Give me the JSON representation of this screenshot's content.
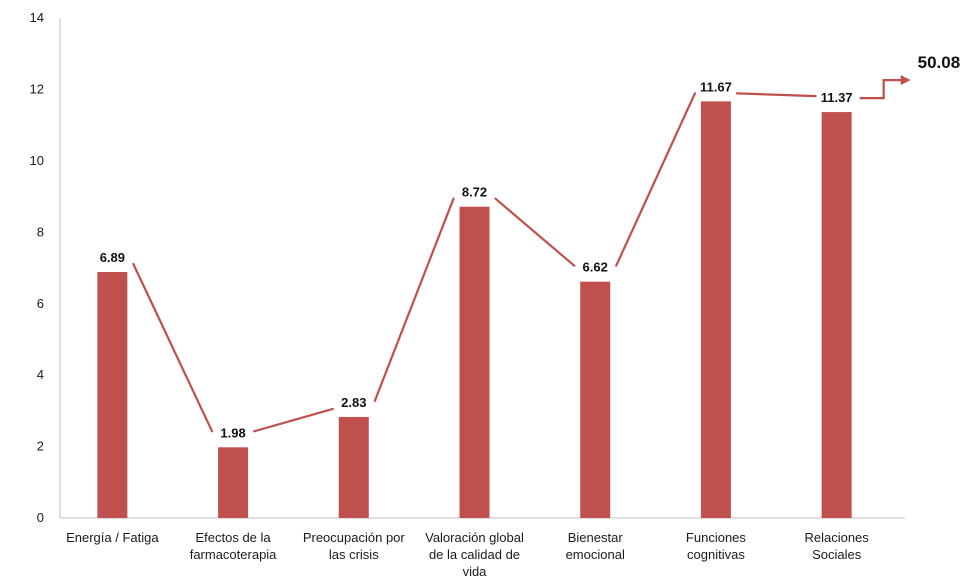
{
  "chart_data": {
    "type": "bar",
    "categories": [
      [
        "Energía / Fatiga"
      ],
      [
        "Efectos de la",
        "farmacoterapia"
      ],
      [
        "Preocupación por",
        "las crisis"
      ],
      [
        "Valoración global",
        "de la calidad de",
        "vida"
      ],
      [
        "Bienestar",
        "emocional"
      ],
      [
        "Funciones",
        "cognitivas"
      ],
      [
        "Relaciones",
        "Sociales"
      ]
    ],
    "values": [
      6.89,
      1.98,
      2.83,
      8.72,
      6.62,
      11.67,
      11.37
    ],
    "data_labels": [
      "6.89",
      "1.98",
      "2.83",
      "8.72",
      "6.62",
      "11.67",
      "11.37"
    ],
    "ylim": [
      0,
      14
    ],
    "yticks": [
      0,
      2,
      4,
      6,
      8,
      10,
      12,
      14
    ],
    "title": "",
    "xlabel": "",
    "ylabel": "",
    "grid": false,
    "legend": "none",
    "total_annotation": "50.08",
    "colors": {
      "bar": "#c0504d",
      "trend_line": "#c0504d",
      "axis": "#bfbfbf"
    }
  }
}
